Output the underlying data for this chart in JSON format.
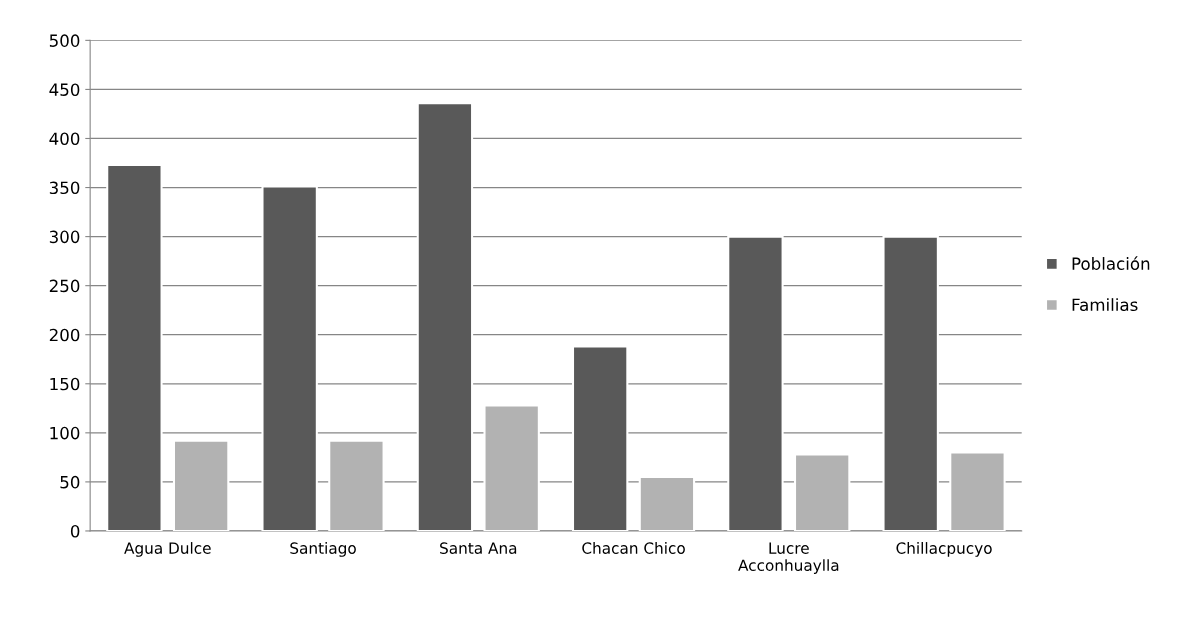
{
  "chart_data": {
    "type": "bar",
    "categories": [
      "Agua Dulce",
      "Santiago",
      "Santa Ana",
      "Chacan Chico",
      "Lucre\nAcconhuaylla",
      "Chillacpucyo"
    ],
    "series": [
      {
        "name": "Población",
        "color": "#595959",
        "values": [
          373,
          351,
          436,
          188,
          300,
          300
        ]
      },
      {
        "name": "Familias",
        "color": "#b2b2b2",
        "values": [
          92,
          92,
          128,
          55,
          78,
          80
        ]
      }
    ],
    "ylim": [
      0,
      500
    ],
    "yticks": [
      0,
      50,
      100,
      150,
      200,
      250,
      300,
      350,
      400,
      450,
      500
    ],
    "grid": "y",
    "legend": "right"
  }
}
